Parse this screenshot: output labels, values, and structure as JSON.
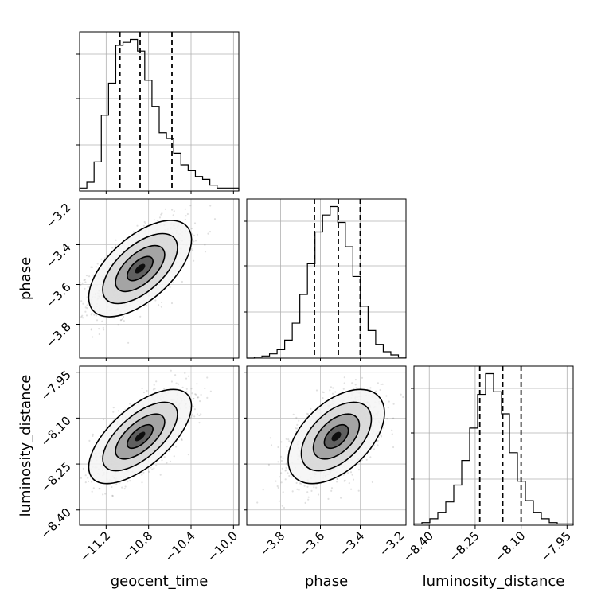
{
  "chart_data": {
    "type": "corner",
    "parameters": [
      "geocent_time",
      "phase",
      "luminosity_distance"
    ],
    "axis_labels": {
      "x": [
        "geocent_time",
        "phase",
        "luminosity_distance"
      ],
      "y": [
        "",
        "phase",
        "luminosity_distance"
      ]
    },
    "ranges": [
      [
        -11.45,
        -9.95
      ],
      [
        -3.97,
        -3.17
      ],
      [
        -8.45,
        -7.93
      ]
    ],
    "ticks": [
      {
        "values": [
          -11.2,
          -10.8,
          -10.4,
          -10.0
        ],
        "labels": [
          "−11.2",
          "−10.8",
          "−10.4",
          "−10.0"
        ]
      },
      {
        "values": [
          -3.8,
          -3.6,
          -3.4,
          -3.2
        ],
        "labels": [
          "−3.8",
          "−3.6",
          "−3.4",
          "−3.2"
        ]
      },
      {
        "values": [
          -8.4,
          -8.25,
          -8.1,
          -7.95
        ],
        "labels": [
          "−8.40",
          "−8.25",
          "−8.10",
          "−7.95"
        ]
      }
    ],
    "quantiles": [
      [
        -11.07,
        -10.88,
        -10.58
      ],
      [
        -3.63,
        -3.51,
        -3.4
      ],
      [
        -8.235,
        -8.16,
        -8.1
      ]
    ],
    "histograms": [
      {
        "edges_range": [
          -11.45,
          -9.95
        ],
        "counts": [
          1,
          3,
          10,
          26,
          37,
          50,
          51,
          52,
          48,
          38,
          29,
          20,
          18,
          13,
          9,
          7,
          5,
          4,
          2,
          1,
          1,
          1
        ]
      },
      {
        "edges_range": [
          -3.97,
          -3.17
        ],
        "counts": [
          0,
          1,
          2,
          4,
          8,
          17,
          33,
          60,
          89,
          119,
          135,
          143,
          128,
          105,
          77,
          49,
          26,
          13,
          6,
          3,
          1
        ]
      },
      {
        "edges_range": [
          -8.45,
          -7.93
        ],
        "counts": [
          1,
          2,
          5,
          10,
          18,
          31,
          50,
          75,
          101,
          117,
          103,
          86,
          56,
          34,
          19,
          10,
          5,
          2,
          1,
          1
        ]
      }
    ],
    "scatter_2d": [
      {
        "x": 1,
        "y": 2,
        "mean": [
          -10.88,
          -3.52
        ],
        "sd": [
          0.22,
          0.11
        ],
        "rho": 0.6
      },
      {
        "x": 1,
        "y": 3,
        "mean": [
          -10.88,
          -8.16
        ],
        "sd": [
          0.22,
          0.07
        ],
        "rho": 0.65
      },
      {
        "x": 2,
        "y": 3,
        "mean": [
          -3.52,
          -8.16
        ],
        "sd": [
          0.11,
          0.07
        ],
        "rho": 0.5
      }
    ],
    "grid": true,
    "legend": "none"
  }
}
